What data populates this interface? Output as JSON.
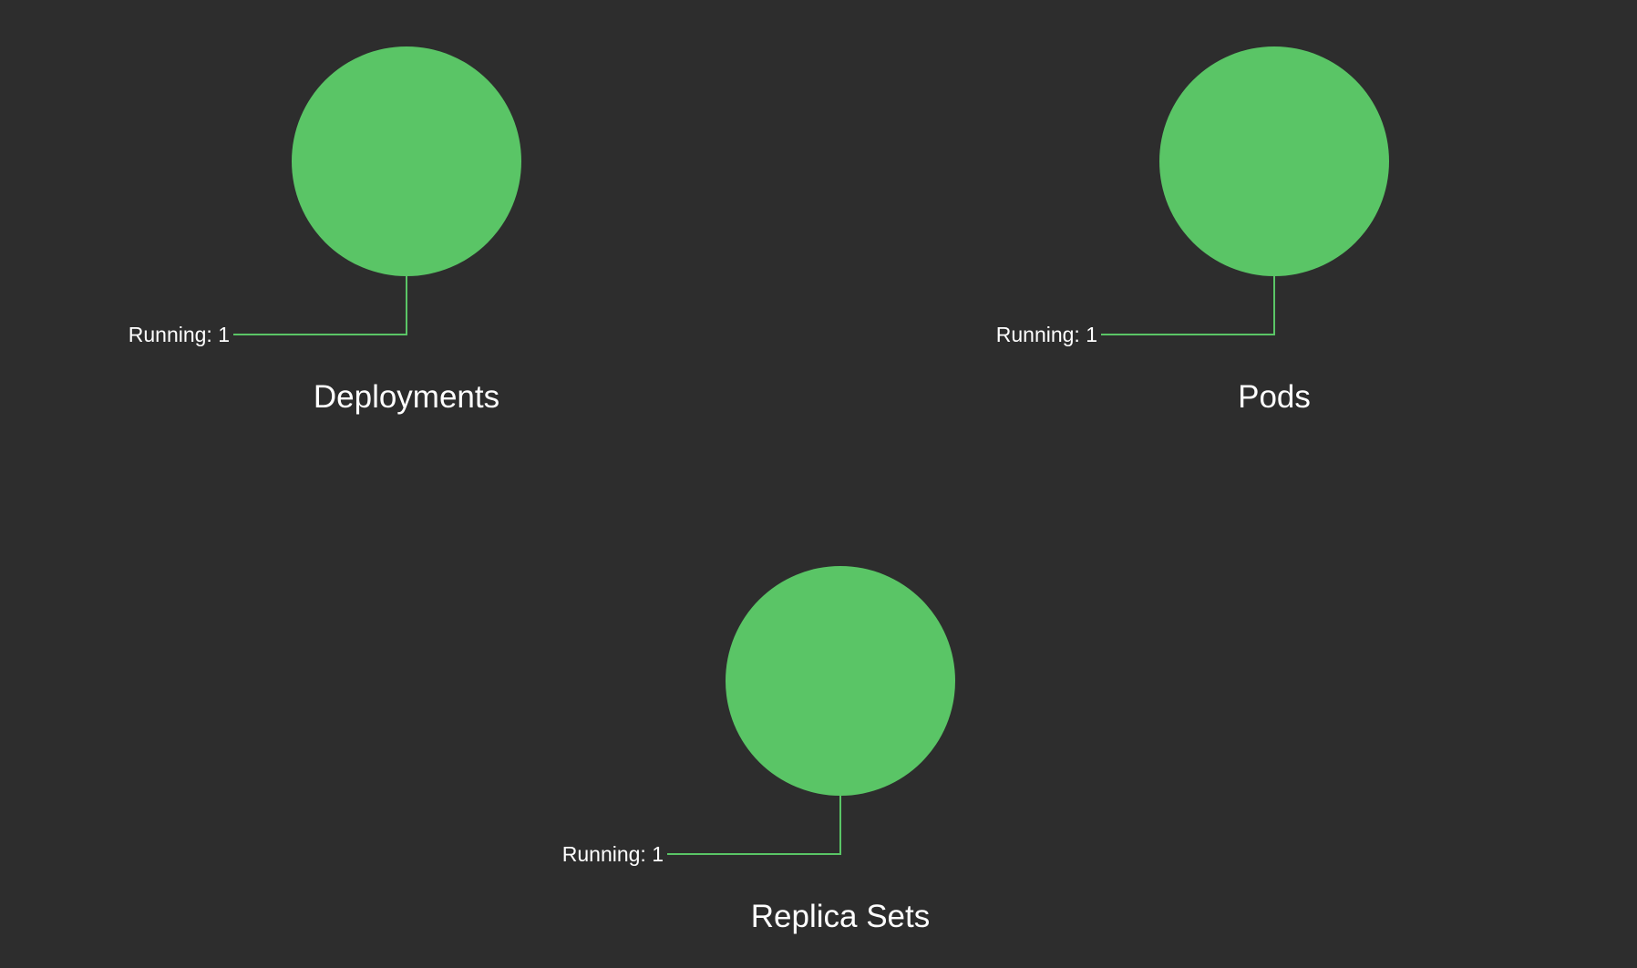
{
  "theme": {
    "background": "#2d2d2d",
    "text_color": "#ffffff"
  },
  "chart_data": [
    {
      "type": "pie",
      "title": "Deployments",
      "slices": [
        {
          "label": "Running",
          "value": 1,
          "display": "Running: 1",
          "color": "#5ac566"
        }
      ]
    },
    {
      "type": "pie",
      "title": "Pods",
      "slices": [
        {
          "label": "Running",
          "value": 1,
          "display": "Running: 1",
          "color": "#5ac566"
        }
      ]
    },
    {
      "type": "pie",
      "title": "Replica Sets",
      "slices": [
        {
          "label": "Running",
          "value": 1,
          "display": "Running: 1",
          "color": "#5ac566"
        }
      ]
    }
  ]
}
